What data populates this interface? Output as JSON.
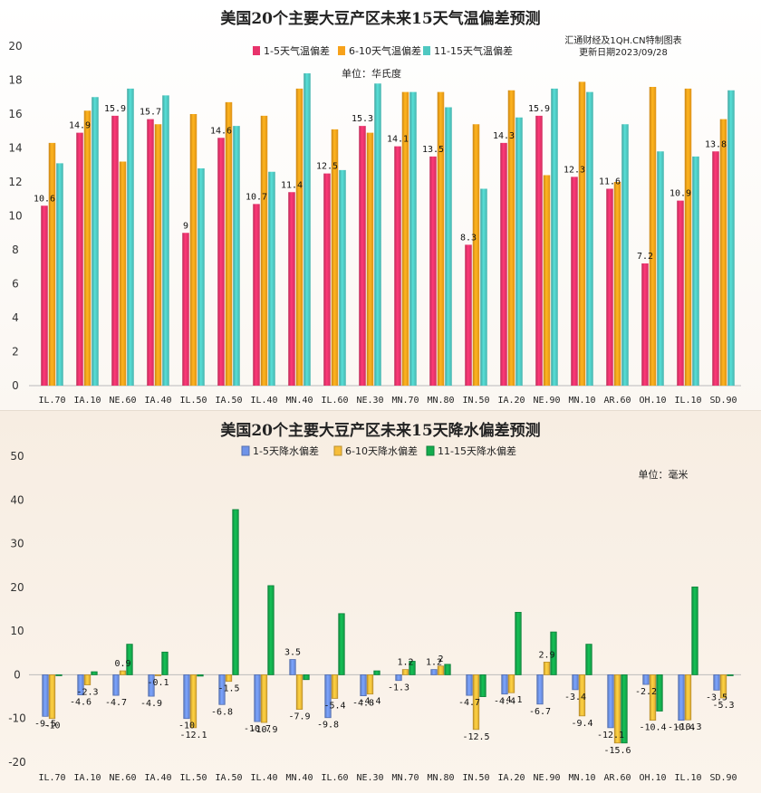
{
  "chart_data": [
    {
      "type": "bar",
      "title": "美国20个主要大豆产区未来15天气温偏差预测",
      "unit": "单位：华氏度",
      "source": "汇通财经及1QH.CN特制图表",
      "updated": "更新日期2023/09/28",
      "ylim": [
        0,
        20
      ],
      "yticks": [
        0,
        2,
        4,
        6,
        8,
        10,
        12,
        14,
        16,
        18,
        20
      ],
      "legend_position": "top-center",
      "categories": [
        "IL.70",
        "IA.10",
        "NE.60",
        "IA.40",
        "IL.50",
        "IA.50",
        "IL.40",
        "MN.40",
        "IL.60",
        "NE.30",
        "MN.70",
        "MN.80",
        "IN.50",
        "IA.20",
        "NE.90",
        "MN.10",
        "AR.60",
        "OH.10",
        "IL.10",
        "SD.90"
      ],
      "series": [
        {
          "name": "1-5天气温偏差",
          "color": "#e8336b",
          "labeled": true,
          "values": [
            10.6,
            14.9,
            15.9,
            15.7,
            9,
            14.6,
            10.7,
            11.4,
            12.5,
            15.3,
            14.1,
            13.5,
            8.3,
            14.3,
            15.9,
            12.3,
            11.6,
            7.2,
            10.9,
            13.8
          ]
        },
        {
          "name": "6-10天气温偏差",
          "color": "#f7a21b",
          "labeled": false,
          "values": [
            14.3,
            16.2,
            13.2,
            15.4,
            16,
            16.7,
            15.9,
            17.5,
            15.1,
            14.9,
            17.3,
            17.3,
            15.4,
            17.4,
            12.4,
            17.9,
            12,
            17.6,
            17.5,
            15.7
          ]
        },
        {
          "name": "11-15天气温偏差",
          "color": "#4fc8c1",
          "labeled": false,
          "values": [
            13.1,
            17,
            17.5,
            17.1,
            12.8,
            15.3,
            12.6,
            18.4,
            12.7,
            17.8,
            17.3,
            16.4,
            11.6,
            15.8,
            17.5,
            17.3,
            15.4,
            13.8,
            13.5,
            17.4
          ]
        }
      ]
    },
    {
      "type": "bar",
      "title": "美国20个主要大豆产区未来15天降水偏差预测",
      "unit": "单位：毫米",
      "ylim": [
        -20,
        50
      ],
      "yticks": [
        -20,
        -10,
        0,
        10,
        20,
        30,
        40,
        50
      ],
      "legend_position": "top-center",
      "categories": [
        "IL.70",
        "IA.10",
        "NE.60",
        "IA.40",
        "IL.50",
        "IA.50",
        "IL.40",
        "MN.40",
        "IL.60",
        "NE.30",
        "MN.70",
        "MN.80",
        "IN.50",
        "IA.20",
        "NE.90",
        "MN.10",
        "AR.60",
        "OH.10",
        "IL.10",
        "SD.90"
      ],
      "series": [
        {
          "name": "1-5天降水偏差",
          "color": "#6f93e8",
          "labeled": true,
          "values": [
            -9.5,
            -4.6,
            -4.7,
            -4.9,
            -10,
            -6.8,
            -10.7,
            3.5,
            -9.8,
            -4.8,
            -1.3,
            1.2,
            -4.7,
            -4.4,
            -6.7,
            -3.4,
            -12.1,
            -2.2,
            -10.4,
            -3.5
          ]
        },
        {
          "name": "6-10天降水偏差",
          "color": "#f6bd3a",
          "labeled": true,
          "values": [
            -10,
            -2.3,
            0.9,
            -0.1,
            -12.1,
            -1.5,
            -10.9,
            -7.9,
            -5.4,
            -4.4,
            1.2,
            2,
            -12.5,
            -4.1,
            2.9,
            -9.4,
            -15.6,
            -10.4,
            -10.3,
            -5.3
          ]
        },
        {
          "name": "11-15天降水偏差",
          "color": "#13ac4d",
          "labeled": false,
          "values": [
            -0.2,
            0.7,
            7,
            5.2,
            -0.3,
            37.8,
            20.4,
            -1.1,
            14,
            0.9,
            3.1,
            2.4,
            -5,
            14.3,
            9.8,
            7,
            -15.6,
            -8.3,
            20.1,
            -0.2
          ]
        }
      ]
    }
  ]
}
